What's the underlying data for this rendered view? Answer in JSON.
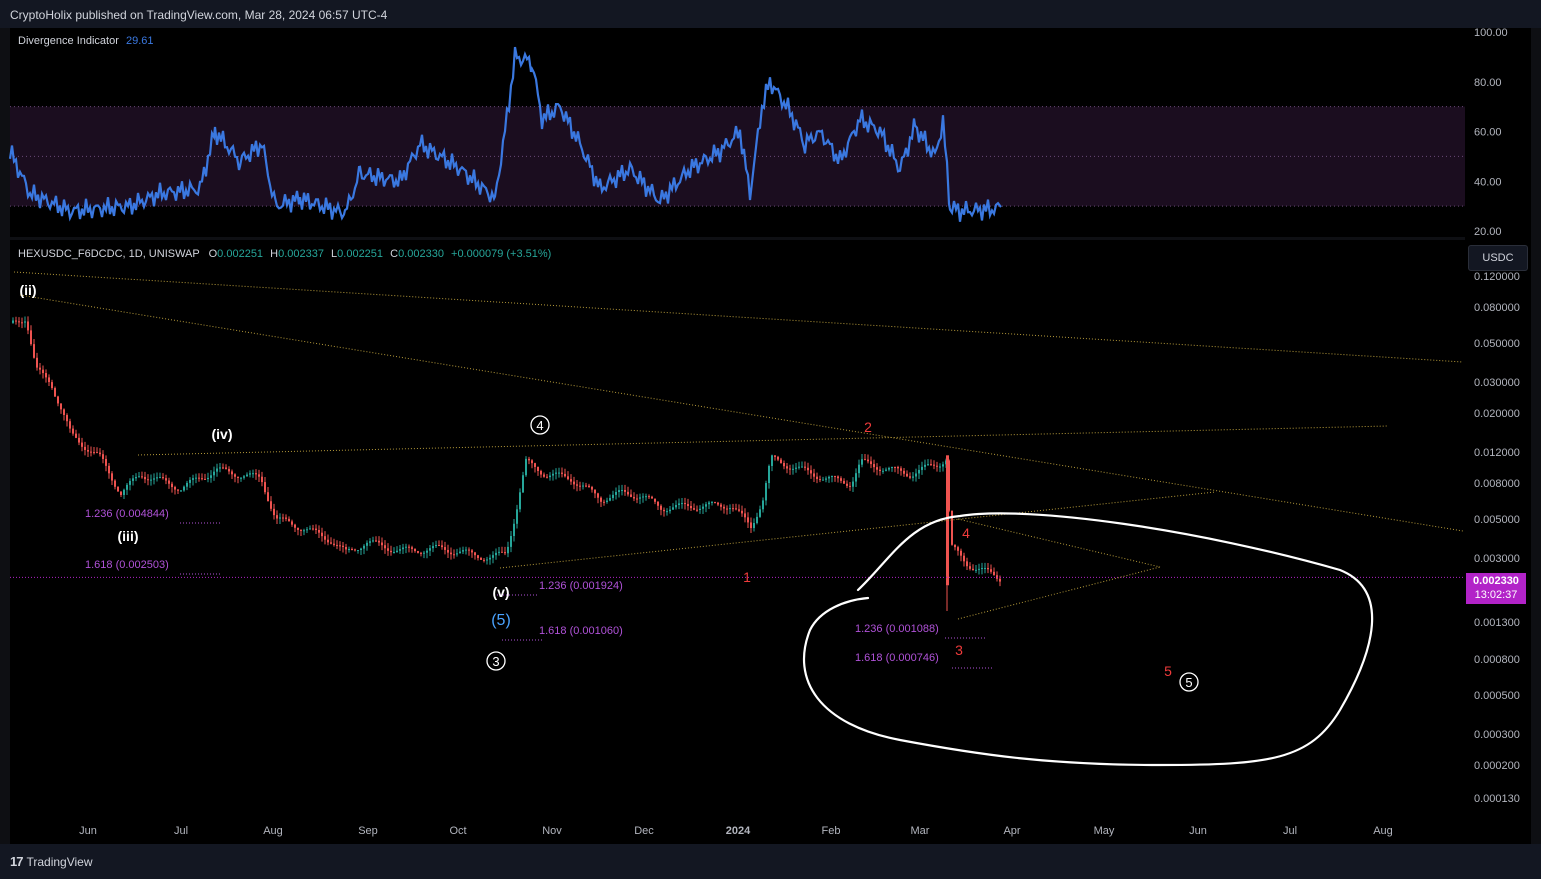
{
  "header": {
    "published": "CryptoHolix published on TradingView.com, Mar 28, 2024 06:57 UTC-4"
  },
  "footer": {
    "brand": "TradingView"
  },
  "indicator": {
    "name": "Divergence Indicator",
    "value": "29.61",
    "color": "#3a78e0",
    "axis_ticks": [
      "100.00",
      "80.00",
      "60.00",
      "40.00",
      "20.00"
    ]
  },
  "symbol": {
    "name": "HEXUSDC_F6DCDC, 1D, UNISWAP",
    "o_label": "O",
    "o_value": "0.002251",
    "h_label": "H",
    "h_value": "0.002337",
    "l_label": "L",
    "l_value": "0.002251",
    "c_label": "C",
    "c_value": "0.002330",
    "change": "+0.000079 (+3.51%)"
  },
  "currency_button": "USDC",
  "last_price": {
    "price": "0.002330",
    "countdown": "13:02:37"
  },
  "colors": {
    "up": "#26a69a",
    "down": "#ef5350",
    "fib": "#b052d8",
    "trend": "#b59a3a",
    "wave_red": "#ef3b3b",
    "wave_blue": "#4aa3ff"
  },
  "chart_data": {
    "type": "candlestick",
    "y_scale": "log",
    "price_ticks": [
      "0.120000",
      "0.080000",
      "0.050000",
      "0.030000",
      "0.020000",
      "0.012000",
      "0.008000",
      "0.005000",
      "0.003000",
      "0.001300",
      "0.000800",
      "0.000500",
      "0.000300",
      "0.000200",
      "0.000130"
    ],
    "time_ticks": [
      "Jun",
      "Jul",
      "Aug",
      "Sep",
      "Oct",
      "Nov",
      "Dec",
      "2024",
      "Feb",
      "Mar",
      "Apr",
      "May",
      "Jun",
      "Jul",
      "Aug"
    ],
    "wave_labels": [
      "(ii)",
      "(iii)",
      "(iv)",
      "(v)",
      "(5)",
      "3",
      "4",
      "1",
      "2",
      "3",
      "4",
      "5",
      "5"
    ],
    "fib_levels": [
      {
        "label": "1.236 (0.004844)"
      },
      {
        "label": "1.618 (0.002503)"
      },
      {
        "label": "1.236 (0.001924)"
      },
      {
        "label": "1.618 (0.001060)"
      },
      {
        "label": "1.236 (0.001088)"
      },
      {
        "label": "1.618 (0.000746)"
      }
    ]
  }
}
